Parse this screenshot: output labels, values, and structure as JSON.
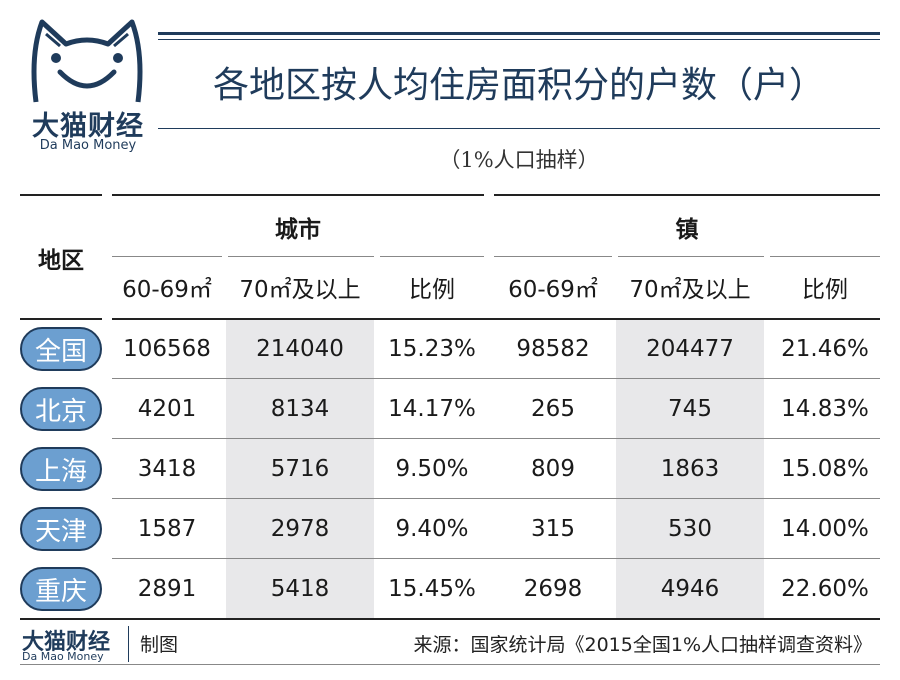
{
  "brand": {
    "name_cn": "大猫财经",
    "name_en": "Da Mao Money"
  },
  "title": "各地区按人均住房面积分的户数（户）",
  "subtitle": "（1%人口抽样）",
  "table": {
    "region_header": "地区",
    "group_city": "城市",
    "group_town": "镇",
    "col_60": "60-69㎡",
    "col_70": "70㎡及以上",
    "col_ratio": "比例",
    "rows": [
      {
        "region": "全国",
        "c60": "106568",
        "c70": "214040",
        "cr": "15.23%",
        "t60": "98582",
        "t70": "204477",
        "tr": "21.46%"
      },
      {
        "region": "北京",
        "c60": "4201",
        "c70": "8134",
        "cr": "14.17%",
        "t60": "265",
        "t70": "745",
        "tr": "14.83%"
      },
      {
        "region": "上海",
        "c60": "3418",
        "c70": "5716",
        "cr": "9.50%",
        "t60": "809",
        "t70": "1863",
        "tr": "15.08%"
      },
      {
        "region": "天津",
        "c60": "1587",
        "c70": "2978",
        "cr": "9.40%",
        "t60": "315",
        "t70": "530",
        "tr": "14.00%"
      },
      {
        "region": "重庆",
        "c60": "2891",
        "c70": "5418",
        "cr": "15.45%",
        "t60": "2698",
        "t70": "4946",
        "tr": "22.60%"
      }
    ]
  },
  "footer": {
    "brand_cn": "大猫财经",
    "brand_en": "Da Mao Money",
    "made_by": "制图",
    "source": "来源：国家统计局《2015全国1%人口抽样调查资料》"
  },
  "colors": {
    "navy": "#1f3b5b",
    "pill": "#6c9fd0",
    "shade": "#e8e8ea"
  }
}
